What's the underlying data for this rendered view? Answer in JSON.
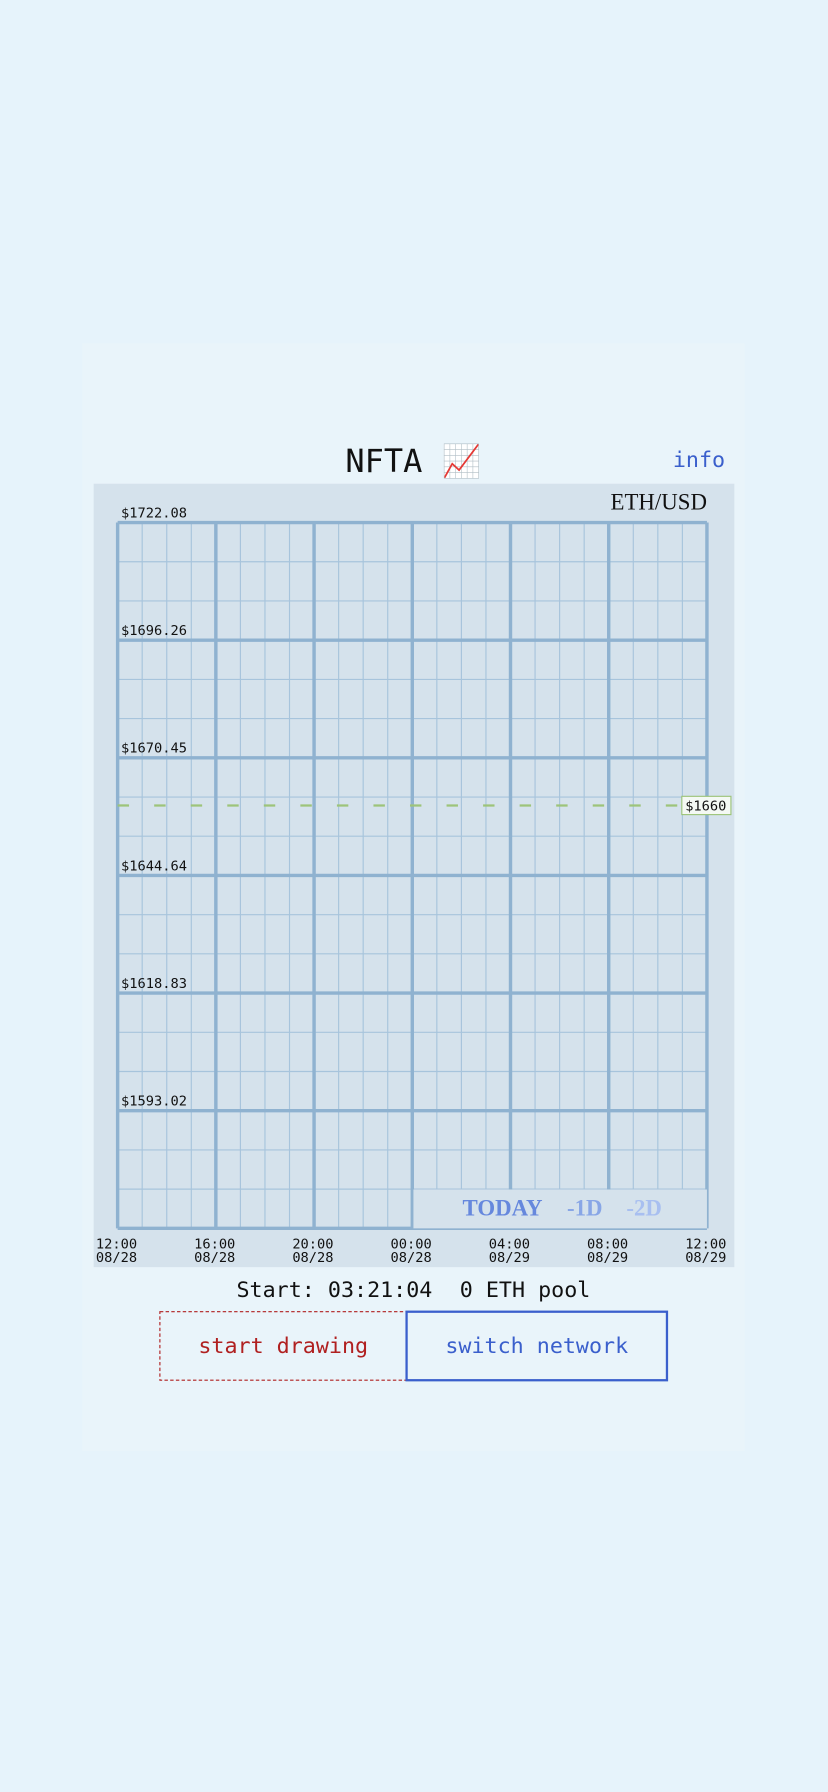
{
  "header": {
    "title": "NFTA 📈",
    "info": "info"
  },
  "chart": {
    "pair": "ETH/USD",
    "ylim": [
      1567.21,
      1722.08
    ],
    "yticks": [
      {
        "value": 1722.08,
        "label": "$1722.08"
      },
      {
        "value": 1696.26,
        "label": "$1696.26"
      },
      {
        "value": 1670.45,
        "label": "$1670.45"
      },
      {
        "value": 1644.64,
        "label": "$1644.64"
      },
      {
        "value": 1618.83,
        "label": "$1618.83"
      },
      {
        "value": 1593.02,
        "label": "$1593.02"
      }
    ],
    "current_price": {
      "value": 1660,
      "label": "$1660"
    },
    "xticks": [
      {
        "time": "12:00",
        "date": "08/28"
      },
      {
        "time": "16:00",
        "date": "08/28"
      },
      {
        "time": "20:00",
        "date": "08/28"
      },
      {
        "time": "00:00",
        "date": "08/28"
      },
      {
        "time": "04:00",
        "date": "08/29"
      },
      {
        "time": "08:00",
        "date": "08/29"
      },
      {
        "time": "12:00",
        "date": "08/29"
      }
    ],
    "ranges": [
      "TODAY",
      "-1D",
      "-2D"
    ]
  },
  "status": {
    "start": "Start: 03:21:04",
    "pool": "0 ETH pool"
  },
  "buttons": [
    "start drawing",
    "switch network"
  ]
}
